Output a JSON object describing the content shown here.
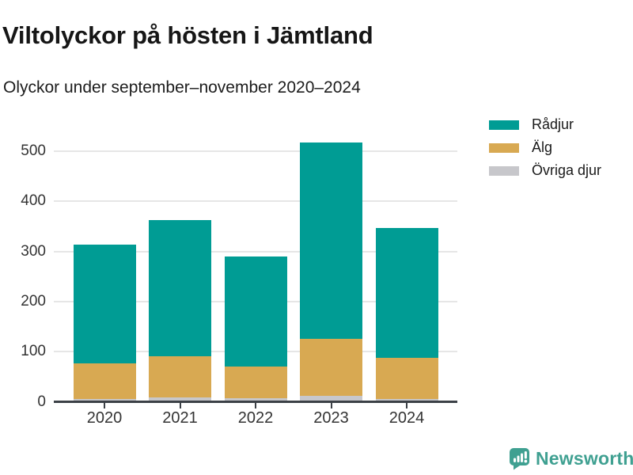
{
  "header": {
    "title": "Viltolyckor på hösten i Jämtland",
    "subtitle": "Olyckor under september–november 2020–2024"
  },
  "legend": {
    "items": [
      {
        "label": "Rådjur",
        "color": "#009c94"
      },
      {
        "label": "Älg",
        "color": "#d8a952"
      },
      {
        "label": "Övriga djur",
        "color": "#c7c7cb"
      }
    ]
  },
  "chart_data": {
    "type": "bar",
    "stacked": true,
    "title": "Viltolyckor på hösten i Jämtland",
    "subtitle": "Olyckor under september–november 2020–2024",
    "categories": [
      "2020",
      "2021",
      "2022",
      "2023",
      "2024"
    ],
    "series": [
      {
        "name": "Rådjur",
        "color": "#009c94",
        "values": [
          237,
          272,
          220,
          391,
          259
        ]
      },
      {
        "name": "Älg",
        "color": "#d8a952",
        "values": [
          70,
          83,
          63,
          114,
          82
        ]
      },
      {
        "name": "Övriga djur",
        "color": "#c7c7cb",
        "values": [
          6,
          8,
          7,
          12,
          6
        ]
      }
    ],
    "totals": [
      313,
      363,
      290,
      517,
      347
    ],
    "yticks": [
      0,
      100,
      200,
      300,
      400,
      500
    ],
    "ylim": [
      0,
      520
    ],
    "xlabel": "",
    "ylabel": "",
    "grid": "horizontal",
    "legend_position": "top-right",
    "colors": {
      "axis": "#3b4046",
      "gridline": "#e6e6e6",
      "tick_label": "#333333"
    }
  },
  "footer": {
    "brand": "Newsworthy",
    "brand_color": "#3fa091"
  }
}
